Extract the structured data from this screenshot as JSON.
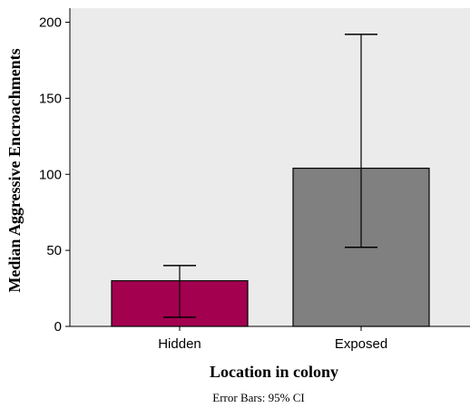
{
  "chart_data": {
    "type": "bar",
    "categories": [
      "Hidden",
      "Exposed"
    ],
    "values": [
      30,
      104
    ],
    "error_bars": {
      "lower": [
        6,
        52
      ],
      "upper": [
        40,
        192
      ]
    },
    "xlabel": "Location in colony",
    "ylabel": "Median Aggressive Encroachments",
    "ylim": [
      0,
      210
    ],
    "yticks": [
      0,
      50,
      100,
      150,
      200
    ],
    "footnote": "Error Bars: 95% CI",
    "grid": false,
    "colors": {
      "plot_background": "#ebebeb",
      "bars": [
        "#a30050",
        "#808080"
      ],
      "bar_outline": "#000000",
      "error_bar": "#000000"
    }
  }
}
